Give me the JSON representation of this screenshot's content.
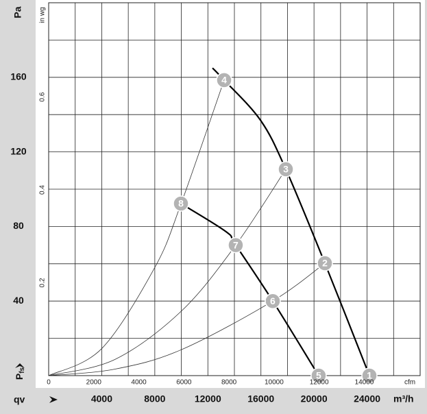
{
  "chart_data": {
    "type": "line",
    "ylabel_top": "Pa",
    "ylabel": {
      "main": "P",
      "sub": "fs"
    },
    "xlabel": "qv",
    "xunit": "m³/h",
    "x2label": "cfm",
    "y2label": "in wg",
    "xlim": [
      0,
      28000
    ],
    "ylim": [
      0,
      200
    ],
    "xticks": [
      4000,
      8000,
      12000,
      16000,
      20000,
      24000
    ],
    "yticks": [
      40,
      80,
      120,
      160
    ],
    "xgrid": [
      2000,
      4000,
      6000,
      8000,
      10000,
      12000,
      14000,
      16000,
      18000,
      20000,
      22000,
      24000,
      26000
    ],
    "ygrid": [
      20,
      40,
      60,
      80,
      100,
      120,
      140,
      160,
      180
    ],
    "x2lim": [
      0,
      16480
    ],
    "x2ticks": [
      0,
      2000,
      4000,
      6000,
      8000,
      10000,
      12000,
      14000
    ],
    "y2lim": [
      0,
      0.803
    ],
    "y2ticks": [
      0.2,
      0.4,
      0.6
    ],
    "series": [
      {
        "color": "#000000",
        "width": 2.2,
        "x": [
          12350,
          13225,
          15966,
          17875,
          20820,
          24177
        ],
        "values": [
          165,
          158.5,
          137,
          110.7,
          60.3,
          0
        ]
      },
      {
        "color": "#000000",
        "width": 2.2,
        "x": [
          9970,
          13370,
          14100,
          16890,
          20350
        ],
        "values": [
          92.3,
          77.2,
          70,
          40,
          0
        ]
      },
      {
        "color": "#333333",
        "width": 0.8,
        "x": [
          0,
          4000,
          8000,
          9970,
          13225
        ],
        "values": [
          0,
          14.5,
          58,
          92,
          158.5
        ]
      },
      {
        "color": "#333333",
        "width": 0.8,
        "x": [
          0,
          5000,
          10000,
          14100,
          17875
        ],
        "values": [
          0,
          8.7,
          34.6,
          70,
          110.7
        ]
      },
      {
        "color": "#333333",
        "width": 0.8,
        "x": [
          0,
          5000,
          10000,
          16890,
          20820
        ],
        "values": [
          0,
          3.5,
          13.9,
          40,
          60.3
        ]
      }
    ],
    "markers": {
      "labels": [
        "1",
        "2",
        "3",
        "4",
        "5",
        "6",
        "7",
        "8"
      ],
      "x": [
        24177,
        20820,
        17875,
        13225,
        20350,
        16890,
        14100,
        9970
      ],
      "values": [
        0,
        60.3,
        110.7,
        158.5,
        0,
        40,
        70,
        92.3
      ]
    }
  }
}
